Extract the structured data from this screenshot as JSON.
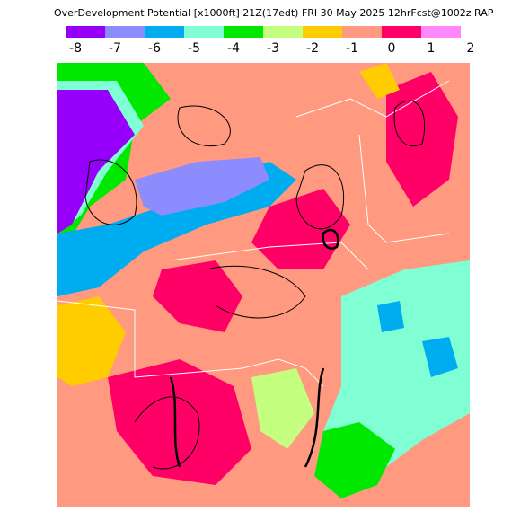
{
  "title": "OverDevelopment Potential [x1000ft] 21Z(17edt) FRI 30 May 2025 12hrFcst@1002z RAP",
  "colorbar": {
    "labels": [
      -8,
      -7,
      -6,
      -5,
      -4,
      -3,
      -2,
      -1,
      0,
      1,
      2
    ],
    "colors": [
      "#9600fa",
      "#8c8cff",
      "#00acf0",
      "#80ffd4",
      "#00e800",
      "#c4ff80",
      "#ffcc00",
      "#ff9980",
      "#ff0066",
      "#ff88ff"
    ]
  }
}
